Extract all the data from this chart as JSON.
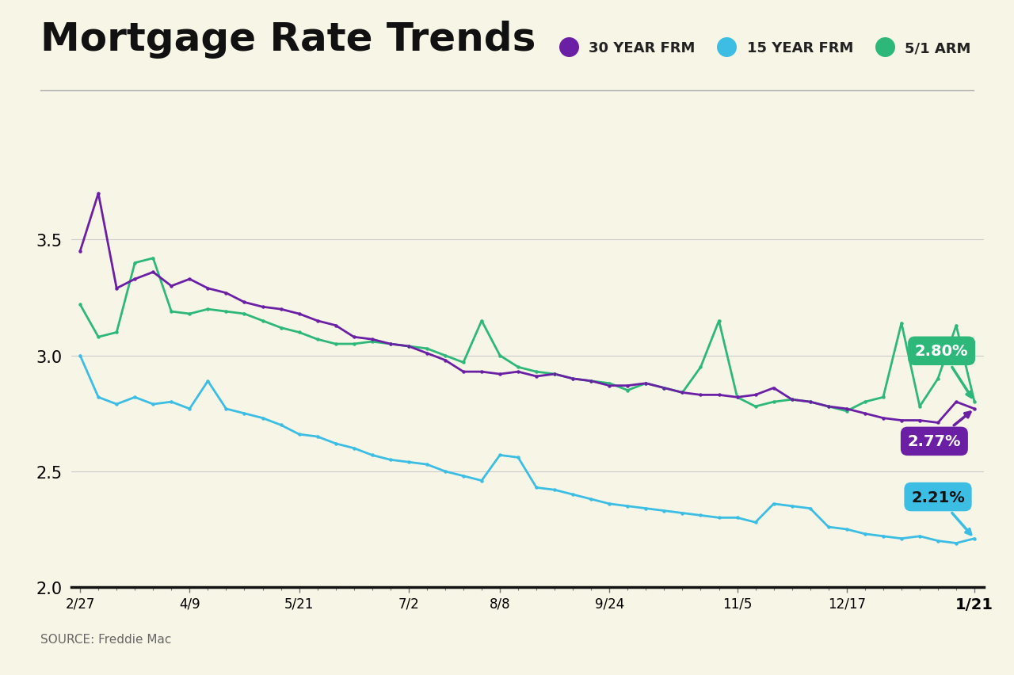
{
  "title": "Mortgage Rate Trends",
  "source": "SOURCE: Freddie Mac",
  "background_color": "#f7f5e6",
  "plot_background_color": "#f7f5e6",
  "ylim": [
    2.0,
    3.75
  ],
  "yticks": [
    2.0,
    2.5,
    3.0,
    3.5
  ],
  "x_labels": [
    "2/27",
    "4/9",
    "5/21",
    "7/2",
    "8/8",
    "9/24",
    "11/5",
    "12/17",
    "1/21"
  ],
  "legend_labels": [
    "30 YEAR FRM",
    "15 YEAR FRM",
    "5/1 ARM"
  ],
  "color_30yr": "#6a1fa5",
  "color_15yr": "#3bbde4",
  "color_arm": "#2db87a",
  "label_30yr": "2.77%",
  "label_15yr": "2.21%",
  "label_arm": "2.80%",
  "data_30yr": [
    3.45,
    3.7,
    3.29,
    3.33,
    3.36,
    3.3,
    3.33,
    3.29,
    3.27,
    3.23,
    3.21,
    3.2,
    3.18,
    3.15,
    3.13,
    3.08,
    3.07,
    3.05,
    3.04,
    3.01,
    2.98,
    2.93,
    2.93,
    2.92,
    2.93,
    2.91,
    2.92,
    2.9,
    2.89,
    2.87,
    2.87,
    2.88,
    2.86,
    2.84,
    2.83,
    2.83,
    2.82,
    2.83,
    2.86,
    2.81,
    2.8,
    2.78,
    2.77,
    2.75,
    2.73,
    2.72,
    2.72,
    2.71,
    2.8,
    2.77
  ],
  "data_15yr": [
    3.0,
    2.82,
    2.79,
    2.82,
    2.79,
    2.8,
    2.77,
    2.89,
    2.77,
    2.75,
    2.73,
    2.7,
    2.66,
    2.65,
    2.62,
    2.6,
    2.57,
    2.55,
    2.54,
    2.53,
    2.5,
    2.48,
    2.46,
    2.57,
    2.56,
    2.43,
    2.42,
    2.4,
    2.38,
    2.36,
    2.35,
    2.34,
    2.33,
    2.32,
    2.31,
    2.3,
    2.3,
    2.28,
    2.36,
    2.35,
    2.34,
    2.26,
    2.25,
    2.23,
    2.22,
    2.21,
    2.22,
    2.2,
    2.19,
    2.21
  ],
  "data_arm": [
    3.22,
    3.08,
    3.1,
    3.4,
    3.42,
    3.19,
    3.18,
    3.2,
    3.19,
    3.18,
    3.15,
    3.12,
    3.1,
    3.07,
    3.05,
    3.05,
    3.06,
    3.05,
    3.04,
    3.03,
    3.0,
    2.97,
    3.15,
    3.0,
    2.95,
    2.93,
    2.92,
    2.9,
    2.89,
    2.88,
    2.85,
    2.88,
    2.86,
    2.84,
    2.95,
    3.15,
    2.82,
    2.78,
    2.8,
    2.81,
    2.8,
    2.78,
    2.76,
    2.8,
    2.82,
    3.14,
    2.78,
    2.9,
    3.13,
    2.8
  ]
}
